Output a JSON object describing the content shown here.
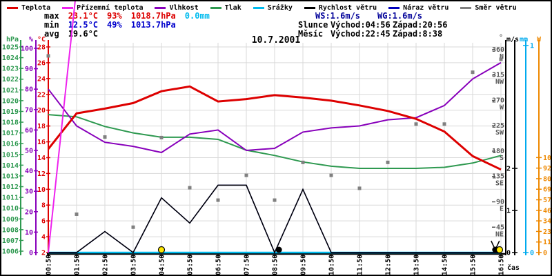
{
  "window": {
    "title": "10.7.2001"
  },
  "legend": {
    "items": [
      {
        "label": "Teplota",
        "color": "#dd0000"
      },
      {
        "label": "Přízemní teplota",
        "color": "#ee22ee"
      },
      {
        "label": "Vlhkost",
        "color": "#8800bb"
      },
      {
        "label": "Tlak",
        "color": "#2e9950"
      },
      {
        "label": "Srážky",
        "color": "#00bbee"
      },
      {
        "label": "Rychlost větru",
        "color": "#000000"
      },
      {
        "label": "Náraz větru",
        "color": "#0000bb"
      },
      {
        "label": "Směr větru",
        "color": "#808080"
      }
    ]
  },
  "stats": {
    "max": {
      "label": "max",
      "temperature": "23.1°C",
      "humidity": "93%",
      "pressure": "1018.7hPa",
      "rain": "0.0mm"
    },
    "min": {
      "label": "min",
      "temperature": "12.5°C",
      "humidity": "49%",
      "pressure": "1013.7hPa"
    },
    "avg": {
      "label": "avg",
      "temperature": "19.6°C"
    },
    "wind": {
      "ws": "WS:1.6m/s",
      "wg": "WG:1.6m/s"
    },
    "sun": {
      "label": "Slunce",
      "rise": "Východ:04:56",
      "set": "Západ:20:56"
    },
    "moon": {
      "label": "Měsíc",
      "rise": "Východ:22:45",
      "set": "Západ:8:38"
    }
  },
  "chart_data": {
    "type": "line",
    "title": "10.7.2001",
    "x_label": "čas",
    "x_ticks": [
      "00:50",
      "01:50",
      "02:50",
      "03:50",
      "04:50",
      "05:50",
      "06:50",
      "07:50",
      "08:50",
      "09:50",
      "10:50",
      "11:50",
      "12:50",
      "13:50",
      "14:50",
      "15:50",
      "16:50"
    ],
    "grid": true,
    "axes": {
      "pressure": {
        "header": "hPa",
        "color": "#2e9950",
        "min": 1006,
        "max": 1025,
        "tick_step": 1
      },
      "humidity": {
        "header": "%",
        "color": "#8800bb",
        "min": 0,
        "max": 100,
        "tick_step": 10
      },
      "temperature": {
        "header": "°C",
        "color": "#dd0000",
        "min": 2,
        "max": 28,
        "tick_step": 2
      },
      "direction": {
        "header": "°",
        "color": "#555555",
        "ticks": [
          {
            "deg": 360,
            "compass": "N"
          },
          {
            "deg": 315,
            "compass": "NW"
          },
          {
            "deg": 270,
            "compass": "W"
          },
          {
            "deg": 225,
            "compass": "SW"
          },
          {
            "deg": 180,
            "compass": "S"
          },
          {
            "deg": 135,
            "compass": "SE"
          },
          {
            "deg": 90,
            "compass": "E"
          },
          {
            "deg": 45,
            "compass": "NE"
          }
        ]
      },
      "wind": {
        "header": "m/s",
        "color": "#000000",
        "ticks": [
          0,
          1,
          2
        ]
      },
      "rain": {
        "header": "mm",
        "color": "#00aaee",
        "ticks": [
          0,
          1
        ]
      },
      "radiation": {
        "header": "W",
        "color": "#ee8800",
        "ticks": [
          0,
          115,
          230,
          345,
          460,
          575,
          690,
          805,
          920,
          1035
        ]
      }
    },
    "series": [
      {
        "name": "Teplota",
        "unit": "°C",
        "color": "#dd0000",
        "width": 3,
        "values": [
          15.1,
          19.6,
          20.2,
          20.9,
          22.4,
          23.0,
          21.1,
          21.4,
          21.9,
          21.6,
          21.2,
          20.6,
          19.9,
          18.9,
          17.3,
          14.2,
          12.5
        ]
      },
      {
        "name": "Přízemní teplota",
        "unit": "°C",
        "color": "#ee22ee",
        "width": 2,
        "x": [
          0,
          0.95
        ],
        "values": [
          2.0,
          33.8
        ],
        "note": "rises off-scale past top of plot"
      },
      {
        "name": "Vlhkost",
        "unit": "%",
        "color": "#8800bb",
        "width": 2,
        "values": [
          80,
          62,
          54,
          52,
          49,
          58,
          60,
          50,
          51,
          59,
          61,
          62,
          65,
          66,
          72,
          85,
          93
        ]
      },
      {
        "name": "Tlak",
        "unit": "hPa",
        "color": "#2e9950",
        "width": 2,
        "values": [
          1018.7,
          1018.5,
          1017.6,
          1017.0,
          1016.6,
          1016.6,
          1016.4,
          1015.4,
          1014.9,
          1014.3,
          1013.9,
          1013.7,
          1013.7,
          1013.7,
          1013.8,
          1014.2,
          1014.9
        ]
      },
      {
        "name": "Srážky",
        "unit": "mm",
        "color": "#00bbee",
        "width": 2.5,
        "values": [
          0,
          0,
          0,
          0,
          0,
          0,
          0,
          0,
          0,
          0,
          0,
          0,
          0,
          0,
          0,
          0,
          0
        ]
      },
      {
        "name": "Rychlost větru",
        "unit": "m/s",
        "color": "#000000",
        "width": 1.5,
        "values": [
          0,
          0,
          0.5,
          0,
          1.3,
          0.7,
          1.6,
          1.6,
          0,
          1.5,
          0,
          0,
          0,
          0,
          0,
          0,
          0
        ]
      },
      {
        "name": "Náraz větru",
        "unit": "m/s",
        "color": "#0000bb",
        "width": 1.5,
        "values": [
          0,
          0,
          0.5,
          0,
          1.3,
          0.7,
          1.6,
          1.6,
          0,
          1.5,
          0,
          0,
          0,
          0,
          0,
          0,
          0
        ]
      },
      {
        "name": "Směr větru",
        "unit": "°",
        "color": "#808080",
        "style": "points",
        "values": [
          349,
          68,
          205,
          45,
          204,
          115,
          93,
          137,
          93,
          160,
          137,
          114,
          160,
          228,
          228,
          320,
          343
        ]
      }
    ],
    "markers": [
      {
        "type": "sun",
        "x": 4.0
      },
      {
        "type": "dot",
        "x": 8.15
      },
      {
        "type": "vee",
        "x": 15.8
      },
      {
        "type": "dot",
        "x": 15.8
      },
      {
        "type": "sun",
        "x": 15.95
      }
    ]
  }
}
